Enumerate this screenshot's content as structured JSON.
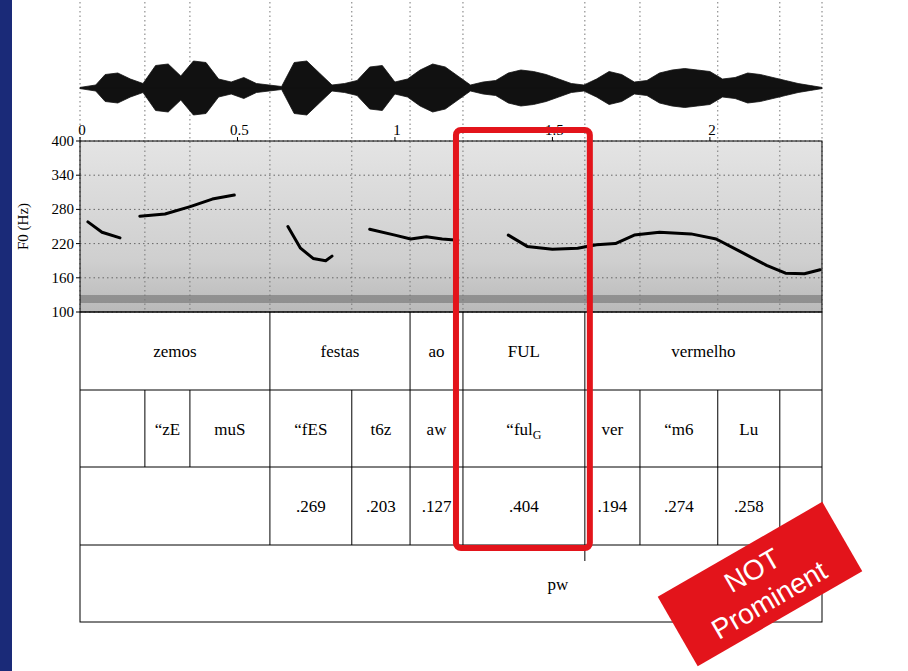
{
  "chart_data": {
    "type": "line",
    "y_label": "F0 (Hz)",
    "color": "#000000",
    "grid": true,
    "x": [
      0.025,
      0.07,
      0.127,
      0.16,
      0.19,
      0.27,
      0.35,
      0.42,
      0.49,
      0.57,
      0.66,
      0.7,
      0.74,
      0.78,
      0.8,
      0.86,
      0.92,
      1.0,
      1.05,
      1.1,
      1.15,
      1.2,
      1.28,
      1.36,
      1.42,
      1.5,
      1.58,
      1.64,
      1.7,
      1.76,
      1.84,
      1.94,
      2.02,
      2.1,
      2.18,
      2.24,
      2.3,
      2.35
    ],
    "values": [
      258,
      240,
      230,
      null,
      268,
      272,
      285,
      298,
      305,
      null,
      250,
      212,
      194,
      190,
      198,
      null,
      245,
      235,
      228,
      232,
      228,
      226,
      null,
      235,
      215,
      210,
      212,
      218,
      220,
      235,
      240,
      237,
      228,
      205,
      182,
      168,
      167,
      174
    ],
    "xlim": [
      0,
      2.356
    ],
    "xticks": [
      0,
      0.5,
      1,
      1.5,
      2
    ],
    "ylim": [
      100,
      400
    ],
    "yticks": [
      100,
      160,
      220,
      280,
      340,
      400
    ]
  },
  "waveform": {
    "t": [
      0,
      0.05,
      0.08,
      0.12,
      0.16,
      0.2,
      0.24,
      0.28,
      0.32,
      0.36,
      0.4,
      0.44,
      0.48,
      0.52,
      0.56,
      0.6,
      0.64,
      0.68,
      0.72,
      0.76,
      0.8,
      0.84,
      0.88,
      0.92,
      0.96,
      1.0,
      1.04,
      1.08,
      1.12,
      1.16,
      1.2,
      1.24,
      1.28,
      1.32,
      1.36,
      1.4,
      1.44,
      1.48,
      1.52,
      1.56,
      1.6,
      1.64,
      1.68,
      1.72,
      1.76,
      1.8,
      1.84,
      1.88,
      1.92,
      1.96,
      2.0,
      2.04,
      2.08,
      2.12,
      2.16,
      2.2,
      2.24,
      2.28,
      2.32,
      2.356
    ],
    "amplitude": [
      0.02,
      0.1,
      0.45,
      0.5,
      0.3,
      0.15,
      0.75,
      0.8,
      0.4,
      0.9,
      0.85,
      0.3,
      0.2,
      0.35,
      0.15,
      0.1,
      0.05,
      0.85,
      0.9,
      0.5,
      0.1,
      0.15,
      0.25,
      0.7,
      0.75,
      0.2,
      0.3,
      0.6,
      0.8,
      0.7,
      0.4,
      0.1,
      0.2,
      0.25,
      0.5,
      0.6,
      0.55,
      0.45,
      0.3,
      0.15,
      0.1,
      0.3,
      0.55,
      0.45,
      0.2,
      0.25,
      0.5,
      0.6,
      0.65,
      0.6,
      0.55,
      0.3,
      0.35,
      0.5,
      0.45,
      0.35,
      0.25,
      0.15,
      0.08,
      0.02
    ]
  },
  "tiers": [
    {
      "intervals": [
        {
          "start": 0,
          "end": 0.603,
          "label": "zemos"
        },
        {
          "start": 0.603,
          "end": 1.048,
          "label": "festas"
        },
        {
          "start": 1.048,
          "end": 1.216,
          "label": "ao"
        },
        {
          "start": 1.216,
          "end": 1.603,
          "label": "FUL"
        },
        {
          "start": 1.603,
          "end": 2.356,
          "label": "vermelho"
        }
      ]
    },
    {
      "intervals": [
        {
          "start": 0,
          "end": 0.206,
          "label": null
        },
        {
          "start": 0.206,
          "end": 0.349,
          "label": "“zE"
        },
        {
          "start": 0.349,
          "end": 0.603,
          "label": "muS"
        },
        {
          "start": 0.603,
          "end": 0.863,
          "label": "“fES"
        },
        {
          "start": 0.863,
          "end": 1.048,
          "label": "t6z"
        },
        {
          "start": 1.048,
          "end": 1.216,
          "label": "aw"
        },
        {
          "start": 1.216,
          "end": 1.603,
          "label": {
            "text": "“ful",
            "sub": "G"
          }
        },
        {
          "start": 1.603,
          "end": 1.778,
          "label": "ver"
        },
        {
          "start": 1.778,
          "end": 2.025,
          "label": "“m6"
        },
        {
          "start": 2.025,
          "end": 2.222,
          "label": "Lu"
        },
        {
          "start": 2.222,
          "end": 2.356,
          "label": null
        }
      ]
    },
    {
      "intervals": [
        {
          "start": 0,
          "end": 0.603,
          "label": null
        },
        {
          "start": 0.603,
          "end": 0.863,
          "label": ".269"
        },
        {
          "start": 0.863,
          "end": 1.048,
          "label": ".203"
        },
        {
          "start": 1.048,
          "end": 1.216,
          "label": ".127"
        },
        {
          "start": 1.216,
          "end": 1.603,
          "label": ".404"
        },
        {
          "start": 1.603,
          "end": 1.778,
          "label": ".194"
        },
        {
          "start": 1.778,
          "end": 2.025,
          "label": ".274"
        },
        {
          "start": 2.025,
          "end": 2.222,
          "label": ".258"
        },
        {
          "start": 2.222,
          "end": 2.356,
          "label": null
        }
      ]
    },
    {
      "points": [
        {
          "time": 1.603,
          "label": "pw"
        }
      ]
    }
  ],
  "highlight": {
    "start": 1.216,
    "end": 1.603
  },
  "stamp": [
    "NOT",
    "Prominent"
  ]
}
